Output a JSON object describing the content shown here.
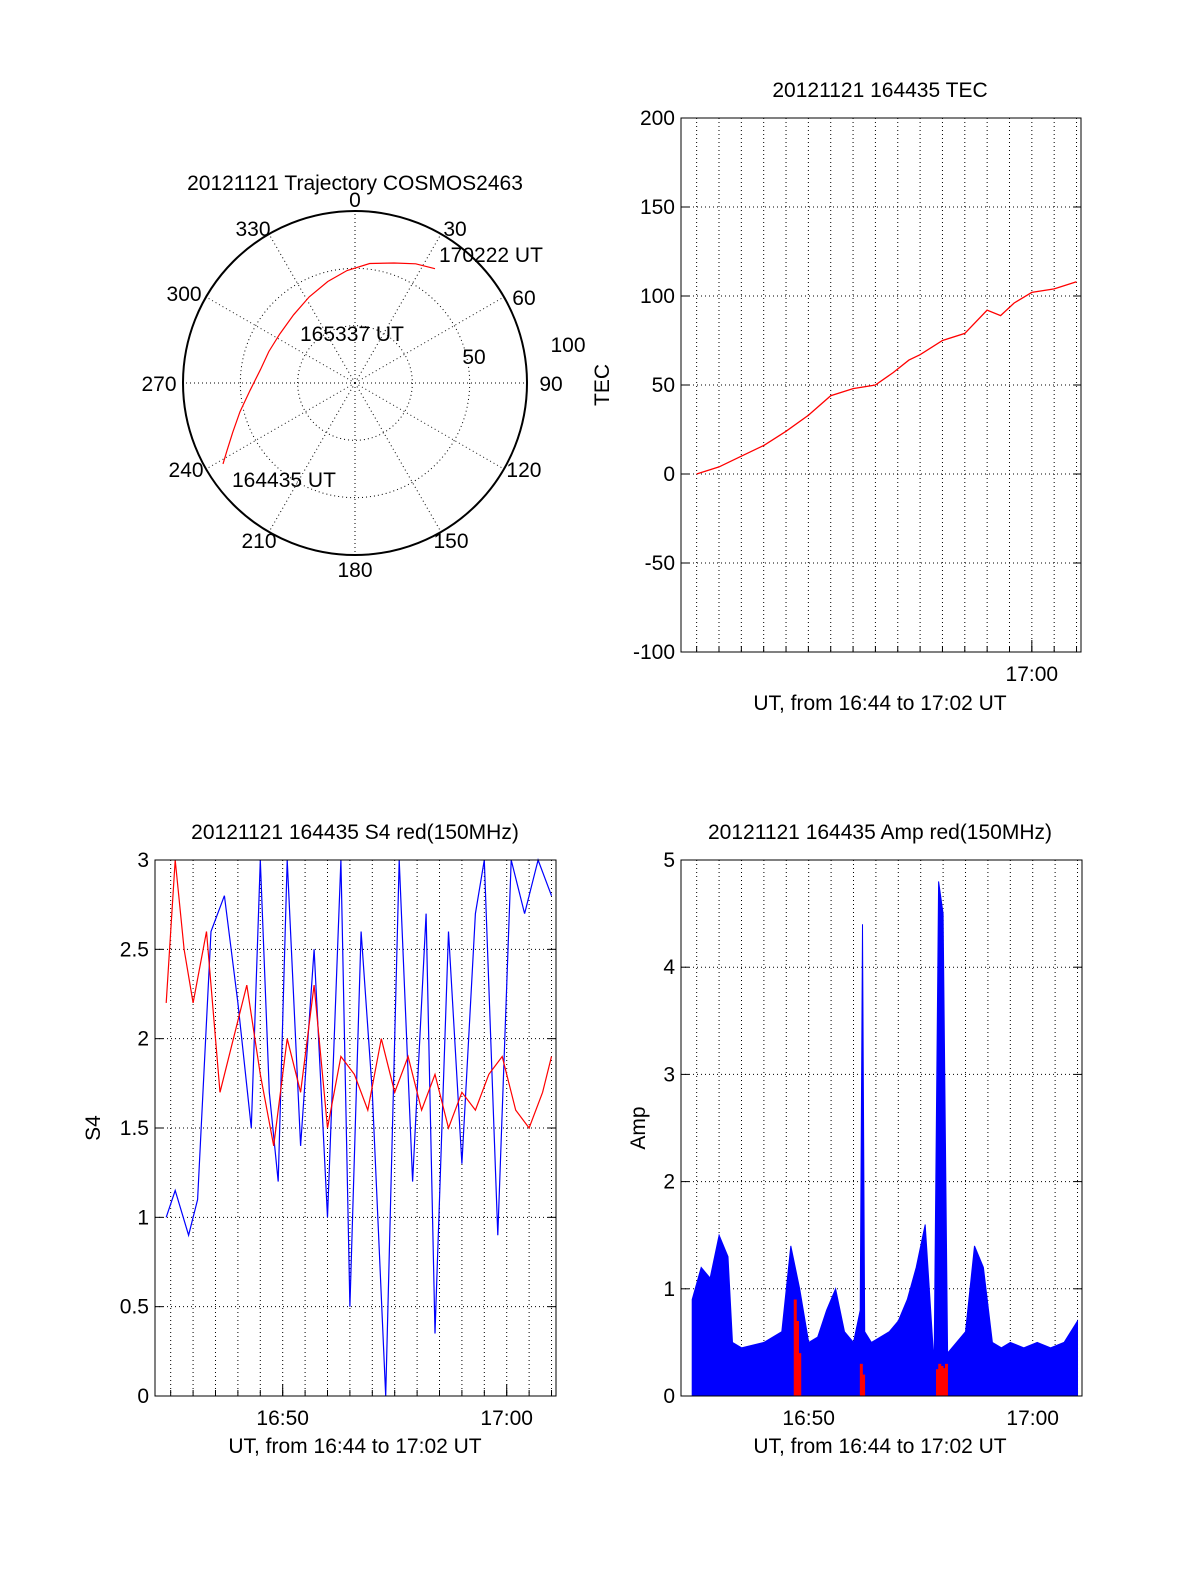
{
  "chart_data": [
    {
      "type": "polar",
      "title": "20121121 Trajectory COSMOS2463",
      "azimuth_labels": [
        "0",
        "30",
        "60",
        "90",
        "120",
        "150",
        "180",
        "210",
        "240",
        "270",
        "300",
        "330"
      ],
      "radial_labels": [
        "50",
        "100"
      ],
      "radial_range": [
        0,
        90
      ],
      "trajectory": {
        "color": "#ff0000",
        "points": [
          [
            238.5,
            81
          ],
          [
            242,
            76
          ],
          [
            248,
            69
          ],
          [
            256,
            62
          ],
          [
            266,
            55
          ],
          [
            278,
            50
          ],
          [
            290,
            48
          ],
          [
            303,
            47
          ],
          [
            318,
            48
          ],
          [
            332,
            51
          ],
          [
            345,
            55
          ],
          [
            356,
            59
          ],
          [
            7,
            63
          ],
          [
            18,
            66
          ],
          [
            27,
            70
          ],
          [
            35,
            73
          ]
        ]
      },
      "annotations": [
        {
          "text": "164435 UT",
          "az": 238,
          "r": 81
        },
        {
          "text": "165337 UT",
          "az": 0,
          "r": 33
        },
        {
          "text": "170222 UT",
          "az": 35,
          "r": 73
        }
      ]
    },
    {
      "type": "line",
      "title": "20121121 164435 TEC",
      "xlabel": "UT, from 16:44 to 17:02 UT",
      "ylabel": "TEC",
      "ylim": [
        -100,
        200
      ],
      "yticks": [
        "-100",
        "-50",
        "0",
        "50",
        "100",
        "150",
        "200"
      ],
      "xlim_minutes": [
        16.3,
        34.2
      ],
      "xticks": [
        {
          "label": "17:00",
          "t": 32.0
        }
      ],
      "grid": true,
      "series": [
        {
          "color": "#ff0000",
          "x": [
            17.0,
            18.0,
            19.0,
            20.0,
            21.0,
            22.0,
            23.0,
            24.0,
            25.0,
            25.8,
            26.5,
            27.0,
            28.0,
            29.0,
            30.0,
            30.6,
            31.2,
            32.0,
            33.0,
            34.0
          ],
          "values": [
            0,
            4,
            10,
            16,
            24,
            33,
            44,
            48,
            50,
            57,
            64,
            67,
            75,
            79,
            92,
            89,
            96,
            102,
            104,
            108
          ]
        }
      ]
    },
    {
      "type": "line",
      "title": "20121121 164435 S4 red(150MHz)",
      "xlabel": "UT, from 16:44 to 17:02 UT",
      "ylabel": "S4",
      "ylim": [
        0,
        3
      ],
      "yticks": [
        "0",
        "0.5",
        "1",
        "1.5",
        "2",
        "2.5",
        "3"
      ],
      "xlim_minutes": [
        16.3,
        34.2
      ],
      "xticks": [
        {
          "label": "16:50",
          "t": 22.0
        },
        {
          "label": "17:00",
          "t": 32.0
        }
      ],
      "grid": true,
      "series": [
        {
          "name": "",
          "color": "#0000ff",
          "x": [
            16.8,
            17.2,
            17.8,
            18.2,
            18.8,
            19.4,
            20.0,
            20.6,
            21.0,
            21.4,
            21.8,
            22.2,
            22.8,
            23.4,
            24.0,
            24.6,
            25.0,
            25.5,
            26.0,
            26.6,
            27.2,
            27.8,
            28.4,
            28.8,
            29.4,
            30.0,
            30.6,
            31.0,
            31.6,
            32.2,
            32.8,
            33.4,
            34.0
          ],
          "values": [
            1.0,
            1.15,
            0.9,
            1.1,
            2.6,
            2.8,
            2.2,
            1.5,
            3.0,
            1.7,
            1.2,
            3.0,
            1.4,
            2.5,
            1.0,
            3.0,
            0.5,
            2.6,
            1.7,
            0.0,
            3.0,
            1.2,
            2.7,
            0.35,
            2.6,
            1.3,
            2.7,
            3.0,
            0.9,
            3.0,
            2.7,
            3.0,
            2.8
          ]
        },
        {
          "name": "",
          "color": "#ff0000",
          "x": [
            16.8,
            17.2,
            17.6,
            18.0,
            18.6,
            19.2,
            19.8,
            20.4,
            21.0,
            21.6,
            22.2,
            22.8,
            23.4,
            24.0,
            24.6,
            25.2,
            25.8,
            26.4,
            27.0,
            27.6,
            28.2,
            28.8,
            29.4,
            30.0,
            30.6,
            31.2,
            31.8,
            32.4,
            33.0,
            33.6,
            34.0
          ],
          "values": [
            2.2,
            3.0,
            2.5,
            2.2,
            2.6,
            1.7,
            2.0,
            2.3,
            1.8,
            1.4,
            2.0,
            1.7,
            2.3,
            1.5,
            1.9,
            1.8,
            1.6,
            2.0,
            1.7,
            1.9,
            1.6,
            1.8,
            1.5,
            1.7,
            1.6,
            1.8,
            1.9,
            1.6,
            1.5,
            1.7,
            1.9
          ]
        }
      ]
    },
    {
      "type": "area",
      "title": "20121121 164435 Amp red(150MHz)",
      "xlabel": "UT, from 16:44 to 17:02 UT",
      "ylabel": "Amp",
      "ylim": [
        0,
        5
      ],
      "yticks": [
        "0",
        "1",
        "2",
        "3",
        "4",
        "5"
      ],
      "xlim_minutes": [
        16.3,
        34.2
      ],
      "xticks": [
        {
          "label": "16:50",
          "t": 22.0
        },
        {
          "label": "17:00",
          "t": 32.0
        }
      ],
      "grid": true,
      "series": [
        {
          "name": "",
          "color": "#0000ff",
          "x": [
            16.8,
            17.2,
            17.6,
            18.0,
            18.4,
            18.6,
            19.0,
            20.0,
            20.8,
            21.2,
            21.6,
            22.0,
            22.4,
            22.8,
            23.2,
            23.6,
            24.0,
            24.3,
            24.4,
            24.5,
            24.8,
            25.2,
            25.6,
            26.0,
            26.4,
            26.8,
            27.2,
            27.6,
            27.8,
            28.0,
            28.2,
            28.6,
            29.0,
            29.4,
            29.8,
            30.2,
            30.6,
            31.0,
            31.6,
            32.2,
            32.8,
            33.4,
            34.0
          ],
          "values": [
            0.9,
            1.2,
            1.1,
            1.5,
            1.3,
            0.5,
            0.45,
            0.5,
            0.6,
            1.4,
            1.0,
            0.5,
            0.55,
            0.8,
            1.0,
            0.6,
            0.5,
            0.8,
            4.4,
            0.6,
            0.5,
            0.55,
            0.6,
            0.7,
            0.9,
            1.2,
            1.6,
            0.3,
            4.8,
            4.5,
            0.4,
            0.5,
            0.6,
            1.4,
            1.2,
            0.5,
            0.45,
            0.5,
            0.45,
            0.5,
            0.45,
            0.5,
            0.7
          ]
        },
        {
          "name": "",
          "color": "#ff0000",
          "x": [
            21.4,
            21.5,
            21.6,
            24.35,
            24.45,
            27.75,
            27.85,
            27.95,
            28.05,
            28.15
          ],
          "values": [
            0.9,
            0.7,
            0.4,
            0.3,
            0.2,
            0.25,
            0.3,
            0.28,
            0.26,
            0.3
          ]
        }
      ]
    }
  ]
}
